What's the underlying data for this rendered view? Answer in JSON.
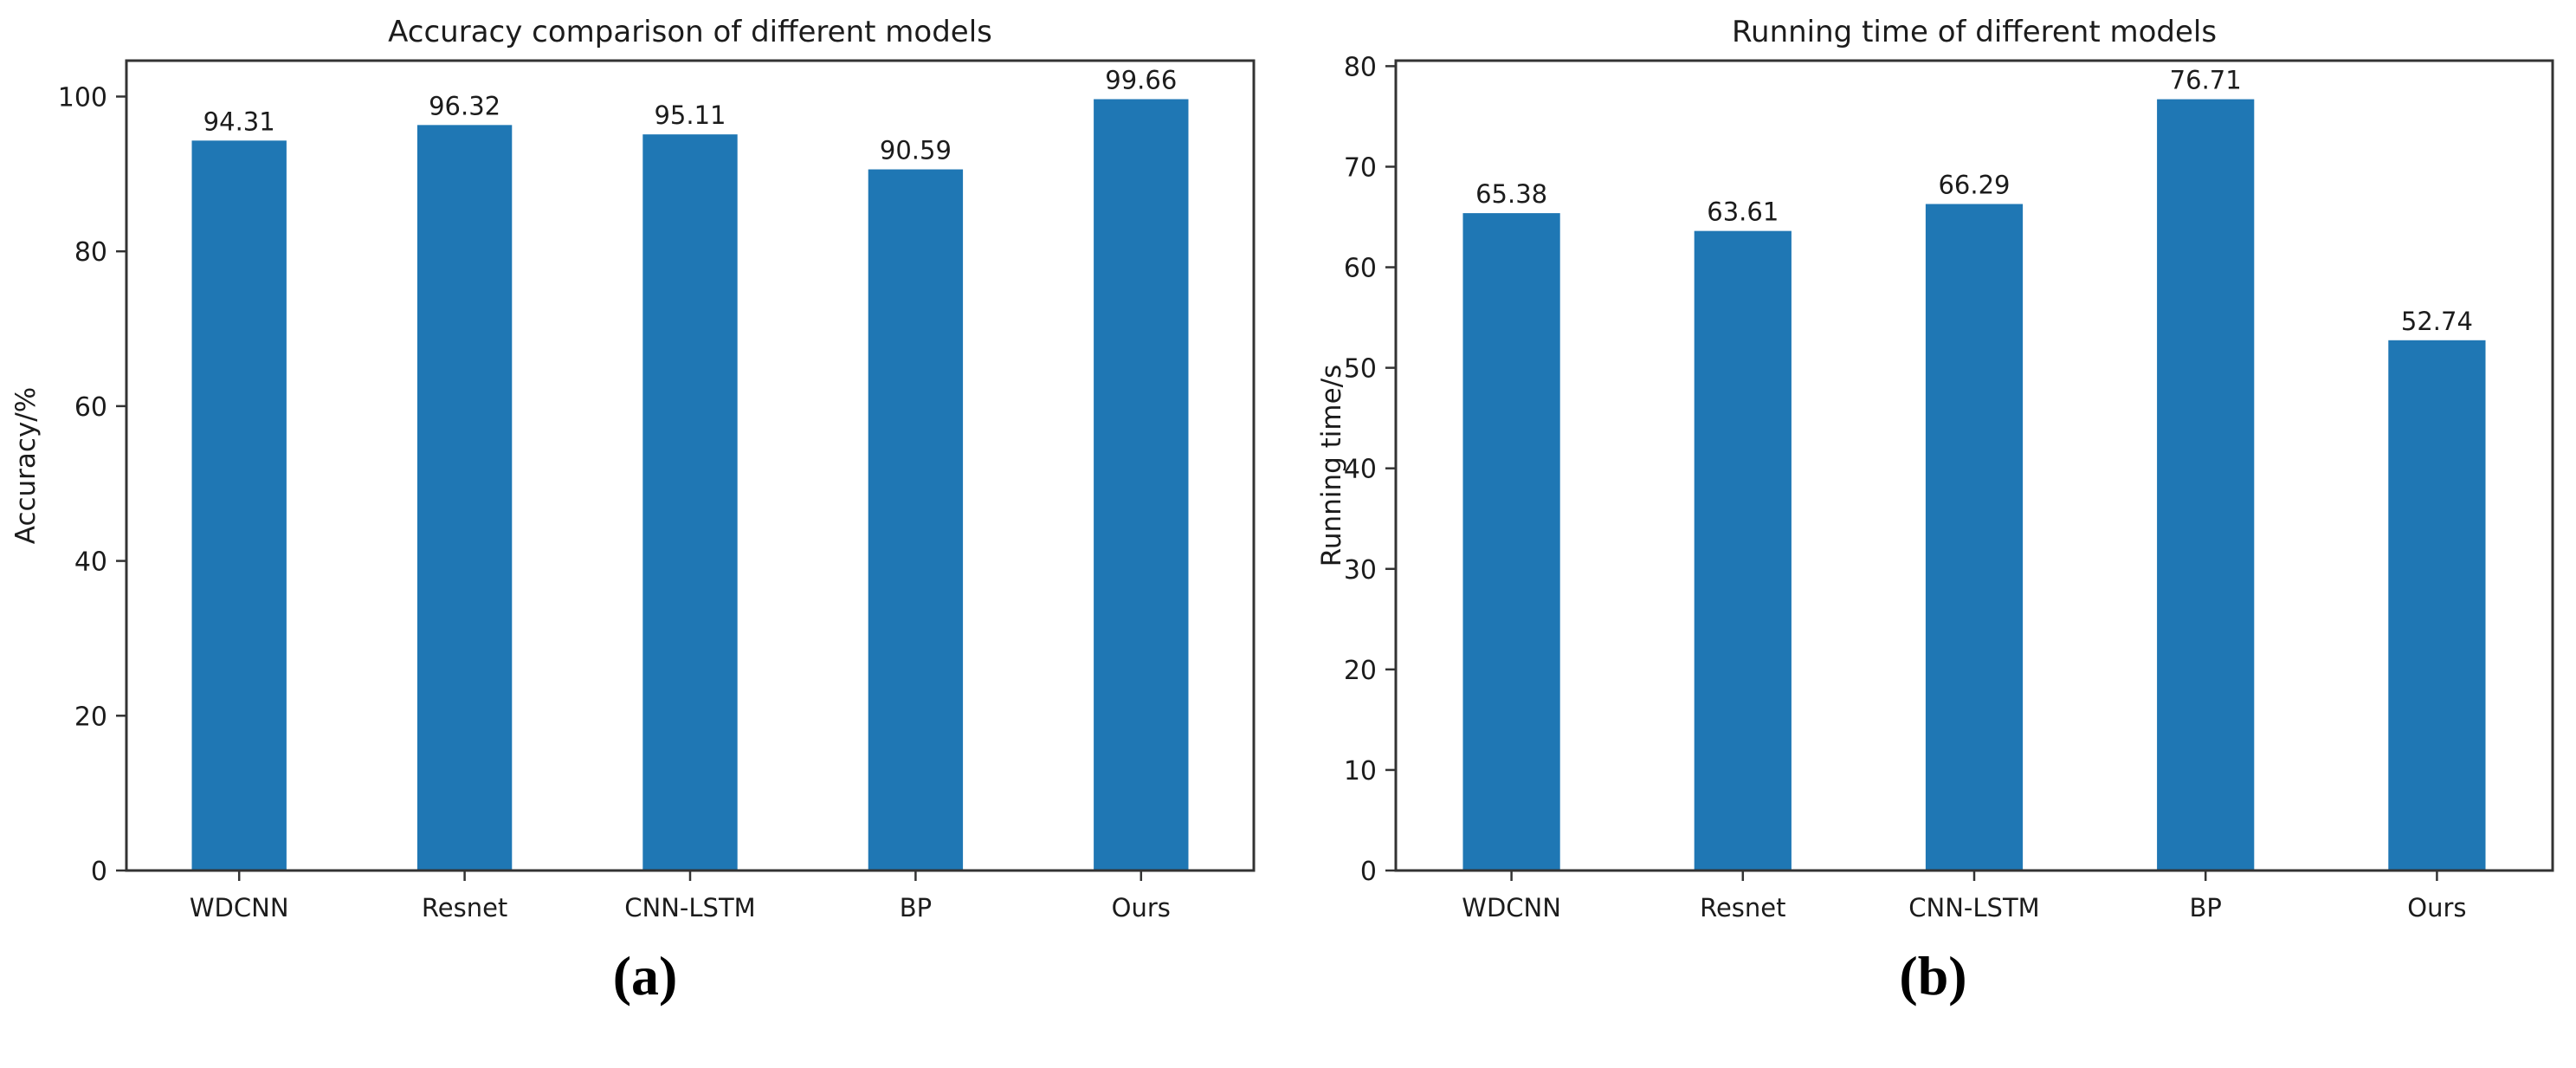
{
  "figure": {
    "panels": [
      {
        "sublabel": "(a)"
      },
      {
        "sublabel": "(b)"
      }
    ]
  },
  "chart_data": [
    {
      "type": "bar",
      "title": "Accuracy comparison of different models",
      "xlabel": "",
      "ylabel": "Accuracy/%",
      "categories": [
        "WDCNN",
        "Resnet",
        "CNN-LSTM",
        "BP",
        "Ours"
      ],
      "values": [
        94.31,
        96.32,
        95.11,
        90.59,
        99.66
      ],
      "value_labels": [
        "94.31",
        "96.32",
        "95.11",
        "90.59",
        "99.66"
      ],
      "yticks": [
        0,
        20,
        40,
        60,
        80,
        100
      ],
      "ytick_labels": [
        "0",
        "20",
        "40",
        "60",
        "80",
        "100"
      ],
      "ylim": [
        0,
        104.64
      ],
      "grid": false,
      "legend": null,
      "bar_color": "#1f77b4"
    },
    {
      "type": "bar",
      "title": "Running time of different models",
      "xlabel": "",
      "ylabel": "Running time/s",
      "categories": [
        "WDCNN",
        "Resnet",
        "CNN-LSTM",
        "BP",
        "Ours"
      ],
      "values": [
        65.38,
        63.61,
        66.29,
        76.71,
        52.74
      ],
      "value_labels": [
        "65.38",
        "63.61",
        "66.29",
        "76.71",
        "52.74"
      ],
      "yticks": [
        0,
        10,
        20,
        30,
        40,
        50,
        60,
        70,
        80
      ],
      "ytick_labels": [
        "0",
        "10",
        "20",
        "30",
        "40",
        "50",
        "60",
        "70",
        "80"
      ],
      "ylim": [
        0,
        80.55
      ],
      "grid": false,
      "legend": null,
      "bar_color": "#1f77b4"
    }
  ],
  "colors": {
    "bar": "#1f77b4",
    "spine": "#333333",
    "text": "#1c1c1c",
    "background": "#ffffff"
  }
}
